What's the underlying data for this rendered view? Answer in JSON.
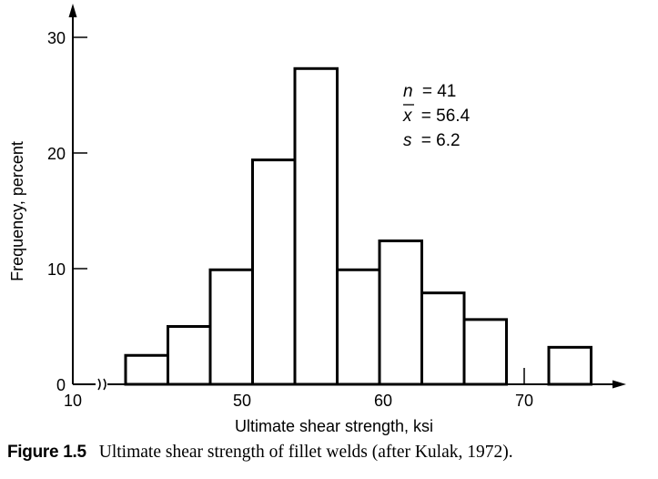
{
  "chart_data": {
    "type": "bar",
    "subtype": "histogram",
    "xlabel": "Ultimate shear strength, ksi",
    "ylabel": "Frequency, percent",
    "x_ticks": [
      "10",
      "50",
      "60",
      "70"
    ],
    "y_ticks": [
      "0",
      "10",
      "20",
      "30"
    ],
    "ylim": [
      0,
      30
    ],
    "xlim": [
      46,
      74
    ],
    "axis_break": true,
    "grid": false,
    "legend": "none",
    "bar_color": "#ffffff",
    "edge_color": "#000000",
    "bins": [
      {
        "x0": 46.0,
        "x1": 49.0,
        "value": 2.5
      },
      {
        "x0": 49.0,
        "x1": 52.0,
        "value": 5.0
      },
      {
        "x0": 52.0,
        "x1": 55.0,
        "value": 9.9
      },
      {
        "x0": 55.0,
        "x1": 58.0,
        "value": 19.4
      },
      {
        "x0": 58.0,
        "x1": 61.0,
        "value": 27.3
      },
      {
        "x0": 61.0,
        "x1": 64.0,
        "value": 9.9
      },
      {
        "x0": 64.0,
        "x1": 67.0,
        "value": 12.4
      },
      {
        "x0": 67.0,
        "x1": 70.0,
        "value": 7.9
      },
      {
        "x0": 70.0,
        "x1": 73.0,
        "value": 5.6
      },
      {
        "x0": 76.0,
        "x1": 79.0,
        "value": 3.2
      }
    ],
    "annotations": {
      "n_label": "n",
      "n_value": "= 41",
      "xbar_label": "x",
      "xbar_value": "= 56.4",
      "s_label": "s",
      "s_value": "= 6.2"
    }
  },
  "caption": {
    "label": "Figure 1.5",
    "text": "Ultimate shear strength of fillet welds (after Kulak, 1972)."
  }
}
